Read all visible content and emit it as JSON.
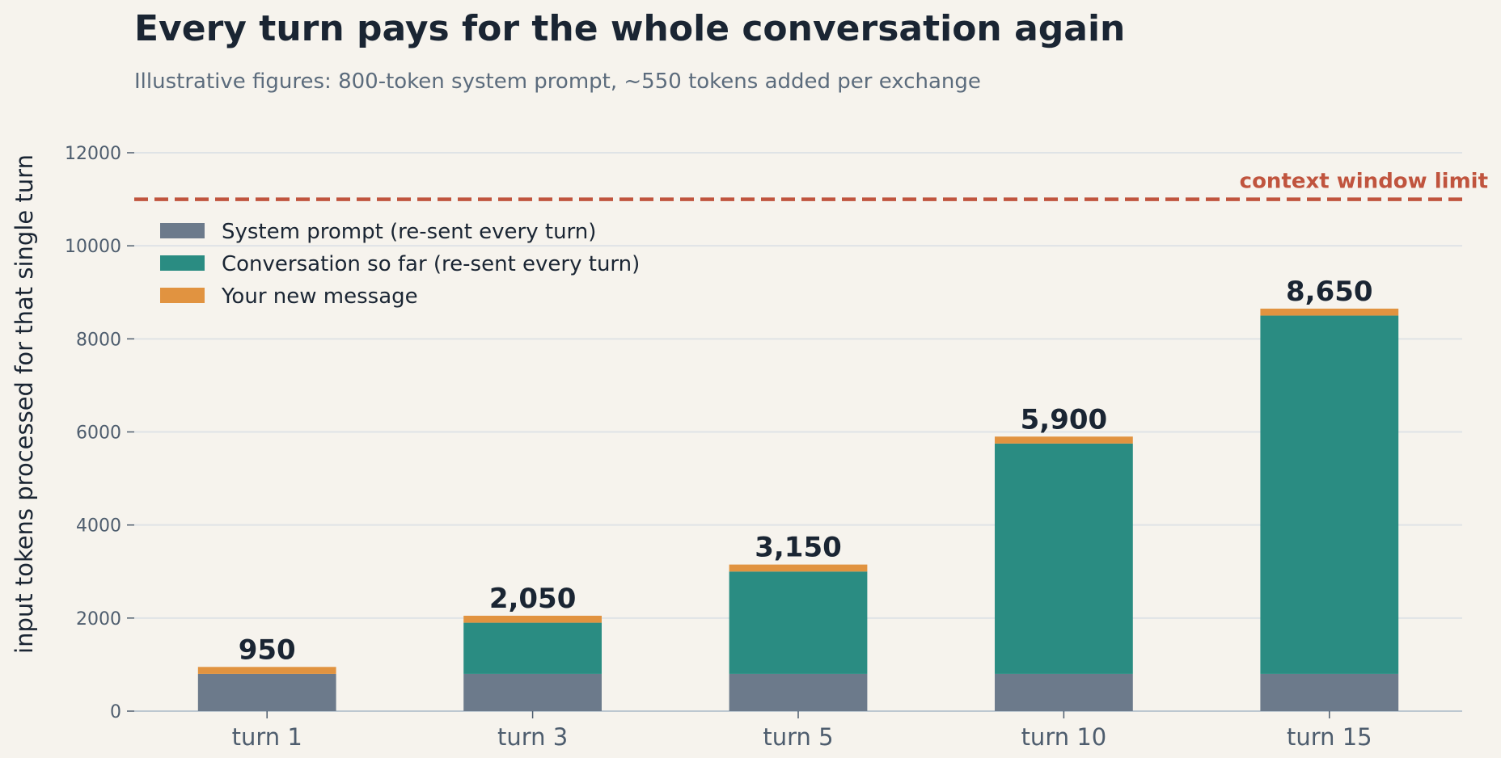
{
  "chart_data": {
    "type": "bar",
    "stacked": true,
    "title": "Every turn pays for the whole conversation again",
    "subtitle": "Illustrative figures: 800-token system prompt, ~550 tokens added per exchange",
    "xlabel": "",
    "ylabel": "input tokens processed for that single turn",
    "categories": [
      "turn 1",
      "turn 3",
      "turn 5",
      "turn 10",
      "turn 15"
    ],
    "series": [
      {
        "name": "System prompt (re-sent every turn)",
        "color": "#6c7a8b",
        "values": [
          800,
          800,
          800,
          800,
          800
        ]
      },
      {
        "name": "Conversation so far (re-sent every turn)",
        "color": "#2a8c82",
        "values": [
          0,
          1100,
          2200,
          4950,
          7700
        ]
      },
      {
        "name": "Your new message",
        "color": "#e19340",
        "values": [
          150,
          150,
          150,
          150,
          150
        ]
      }
    ],
    "totals": [
      950,
      2050,
      3150,
      5900,
      8650
    ],
    "total_labels": [
      "950",
      "2,050",
      "3,150",
      "5,900",
      "8,650"
    ],
    "ylim": [
      0,
      12000
    ],
    "yticks": [
      0,
      2000,
      4000,
      6000,
      8000,
      10000,
      12000
    ],
    "grid": true,
    "legend_position": "top-left",
    "reference_line": {
      "value": 11000,
      "label": "context window limit",
      "color": "#c0543e",
      "style": "dashed"
    }
  }
}
